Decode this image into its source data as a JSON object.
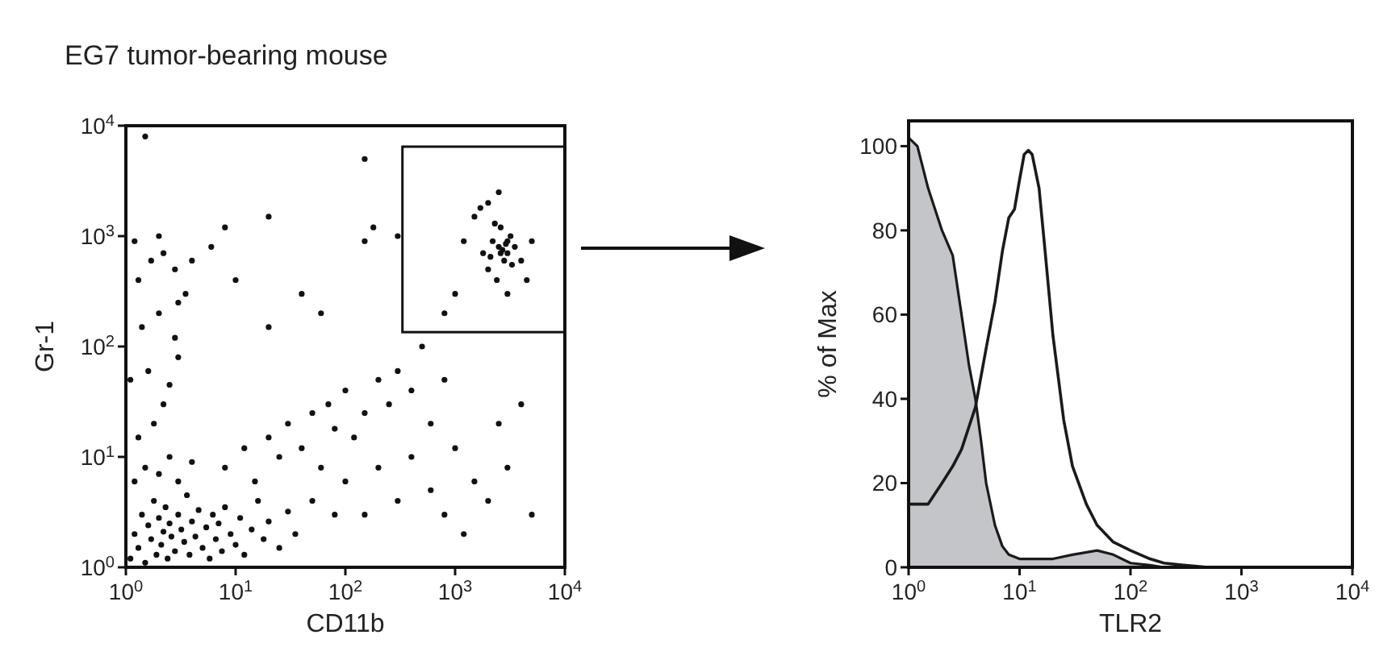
{
  "chart_data": [
    {
      "type": "scatter",
      "title": "EG7 tumor-bearing mouse",
      "xlabel": "CD11b",
      "ylabel": "Gr-1",
      "log": "xy",
      "marker": "circle",
      "color": "#111111",
      "xlim": [
        1,
        10000
      ],
      "ylim": [
        1,
        10000
      ],
      "xticks": [
        {
          "value": 1,
          "label": "10$^{0}$"
        },
        {
          "value": 10,
          "label": "10$^{1}$"
        },
        {
          "value": 100,
          "label": "10$^{2}$"
        },
        {
          "value": 1000,
          "label": "10$^{3}$"
        },
        {
          "value": 10000,
          "label": "10$^{4}$"
        }
      ],
      "yticks": [
        {
          "value": 1,
          "label": "10$^{0}$"
        },
        {
          "value": 10,
          "label": "10$^{1}$"
        },
        {
          "value": 100,
          "label": "10$^{2}$"
        },
        {
          "value": 1000,
          "label": "10$^{3}$"
        },
        {
          "value": 10000,
          "label": "10$^{4}$"
        }
      ],
      "x": [
        1.1,
        1.2,
        1.3,
        1.4,
        1.5,
        1.6,
        1.7,
        1.8,
        1.9,
        2.0,
        2.1,
        2.2,
        2.3,
        2.4,
        2.5,
        2.6,
        2.8,
        3.0,
        3.2,
        3.4,
        3.6,
        3.8,
        4.0,
        4.3,
        4.6,
        5.0,
        5.4,
        5.8,
        6.2,
        6.6,
        7.0,
        7.5,
        8,
        9,
        10,
        11,
        12,
        14,
        16,
        18,
        20,
        25,
        30,
        35,
        1.2,
        1.5,
        2,
        2.5,
        3,
        4,
        1.3,
        1.8,
        2.2,
        1.1,
        1.6,
        2.5,
        3,
        1.4,
        2,
        2.8,
        1.3,
        1.7,
        2.2,
        2.8,
        3.5,
        1.2,
        2,
        4,
        6,
        3,
        8,
        12,
        15,
        20,
        25,
        30,
        40,
        50,
        60,
        70,
        80,
        100,
        120,
        150,
        200,
        250,
        300,
        400,
        500,
        600,
        800,
        50,
        80,
        100,
        150,
        200,
        300,
        400,
        600,
        800,
        1000,
        1200,
        1500,
        2000,
        2500,
        3000,
        5000,
        4000,
        60,
        150,
        300,
        20,
        10,
        8,
        40,
        2500,
        3000,
        2200,
        2800,
        3200,
        2000,
        3500,
        2600,
        1800,
        2400,
        3000,
        4000,
        1500,
        1700,
        2000,
        2300,
        1200,
        2700,
        3300,
        2100,
        5000,
        1000,
        3000,
        2500,
        800,
        4500,
        2900,
        2600,
        1.5,
        150,
        180,
        20
      ],
      "values": [
        1.2,
        2.0,
        1.5,
        3.0,
        1.1,
        2.4,
        1.8,
        4.0,
        1.3,
        2.8,
        1.6,
        2.1,
        3.5,
        1.2,
        2.5,
        1.9,
        1.4,
        3.0,
        2.2,
        1.7,
        4.5,
        1.3,
        2.6,
        1.9,
        3.3,
        1.5,
        2.3,
        1.2,
        3.0,
        1.8,
        2.5,
        1.4,
        3.5,
        2.0,
        1.6,
        2.8,
        1.3,
        2.2,
        4.0,
        1.8,
        2.6,
        1.5,
        3.2,
        2.0,
        6,
        8,
        7,
        10,
        6,
        9,
        15,
        20,
        30,
        50,
        60,
        45,
        80,
        150,
        200,
        120,
        400,
        600,
        700,
        500,
        300,
        900,
        1000,
        600,
        800,
        250,
        8,
        12,
        6,
        15,
        10,
        20,
        12,
        25,
        8,
        30,
        18,
        40,
        15,
        25,
        50,
        30,
        60,
        40,
        100,
        20,
        50,
        4,
        3,
        6,
        3,
        8,
        4,
        10,
        5,
        3,
        12,
        2,
        6,
        4,
        20,
        8,
        3,
        30,
        200,
        900,
        1000,
        150,
        400,
        1200,
        300,
        800,
        700,
        900,
        600,
        1000,
        500,
        800,
        1200,
        700,
        400,
        900,
        600,
        1500,
        1800,
        2000,
        1300,
        900,
        750,
        550,
        650,
        900,
        300,
        300,
        2500,
        200,
        400,
        850,
        700,
        8000,
        5000,
        1200,
        1500
      ]
    },
    {
      "type": "area",
      "xlabel": "TLR2",
      "ylabel": "% of Max",
      "log": "x",
      "xlim": [
        1,
        10000
      ],
      "ylim": [
        0,
        106
      ],
      "xticks": [
        {
          "value": 1,
          "label": "10$^{0}$"
        },
        {
          "value": 10,
          "label": "10$^{1}$"
        },
        {
          "value": 100,
          "label": "10$^{2}$"
        },
        {
          "value": 1000,
          "label": "10$^{3}$"
        },
        {
          "value": 10000,
          "label": "10$^{4}$"
        }
      ],
      "yticks": [
        0,
        20,
        40,
        60,
        80,
        100
      ],
      "series": [
        {
          "type": "area",
          "color": "#c4c5c9",
          "x": [
            1,
            1.2,
            1.5,
            2,
            2.5,
            3,
            3.5,
            4,
            4.5,
            5,
            6,
            7,
            8,
            10,
            15,
            20,
            30,
            50,
            70,
            100,
            150,
            200,
            10000
          ],
          "values": [
            102,
            100,
            90,
            80,
            74,
            60,
            48,
            40,
            30,
            20,
            10,
            5,
            3,
            2,
            2,
            2,
            3,
            4,
            3,
            1,
            0.5,
            0,
            0
          ]
        },
        {
          "type": "line",
          "color": "#1a1a1a",
          "x": [
            1,
            1.5,
            2,
            2.5,
            3,
            4,
            5,
            6,
            7,
            8,
            9,
            10,
            11,
            12,
            13,
            15,
            17,
            20,
            25,
            30,
            40,
            50,
            70,
            100,
            150,
            200,
            300,
            500,
            10000
          ],
          "values": [
            15,
            15,
            20,
            24,
            28,
            38,
            52,
            63,
            75,
            83,
            85,
            92,
            98,
            99,
            98,
            90,
            75,
            55,
            35,
            24,
            15,
            10,
            6,
            4,
            2,
            1,
            0.5,
            0,
            0
          ]
        }
      ]
    }
  ]
}
